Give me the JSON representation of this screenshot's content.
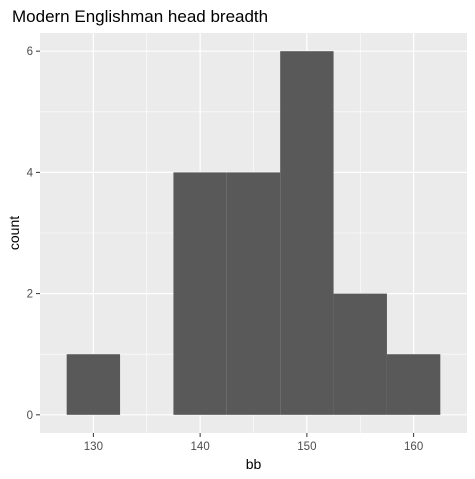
{
  "chart_data": {
    "type": "histogram",
    "title": "Modern Englishman head breadth",
    "xlabel": "bb",
    "ylabel": "count",
    "bins": [
      {
        "x0": 127.5,
        "x1": 132.5,
        "count": 1
      },
      {
        "x0": 132.5,
        "x1": 137.5,
        "count": 0
      },
      {
        "x0": 137.5,
        "x1": 142.5,
        "count": 4
      },
      {
        "x0": 142.5,
        "x1": 147.5,
        "count": 4
      },
      {
        "x0": 147.5,
        "x1": 152.5,
        "count": 6
      },
      {
        "x0": 152.5,
        "x1": 157.5,
        "count": 2
      },
      {
        "x0": 157.5,
        "x1": 162.5,
        "count": 1
      }
    ],
    "xlim": [
      125.0,
      165.0
    ],
    "ylim": [
      -0.3,
      6.3
    ],
    "x_ticks": [
      130,
      140,
      150,
      160
    ],
    "x_minor": [
      135,
      145,
      155
    ],
    "y_ticks": [
      0,
      2,
      4,
      6
    ],
    "y_minor": [
      1,
      3,
      5
    ],
    "grid": true,
    "colors": {
      "panel": "#ebebeb",
      "grid": "#ffffff",
      "bar": "#595959",
      "tick_text": "#4d4d4d"
    }
  }
}
